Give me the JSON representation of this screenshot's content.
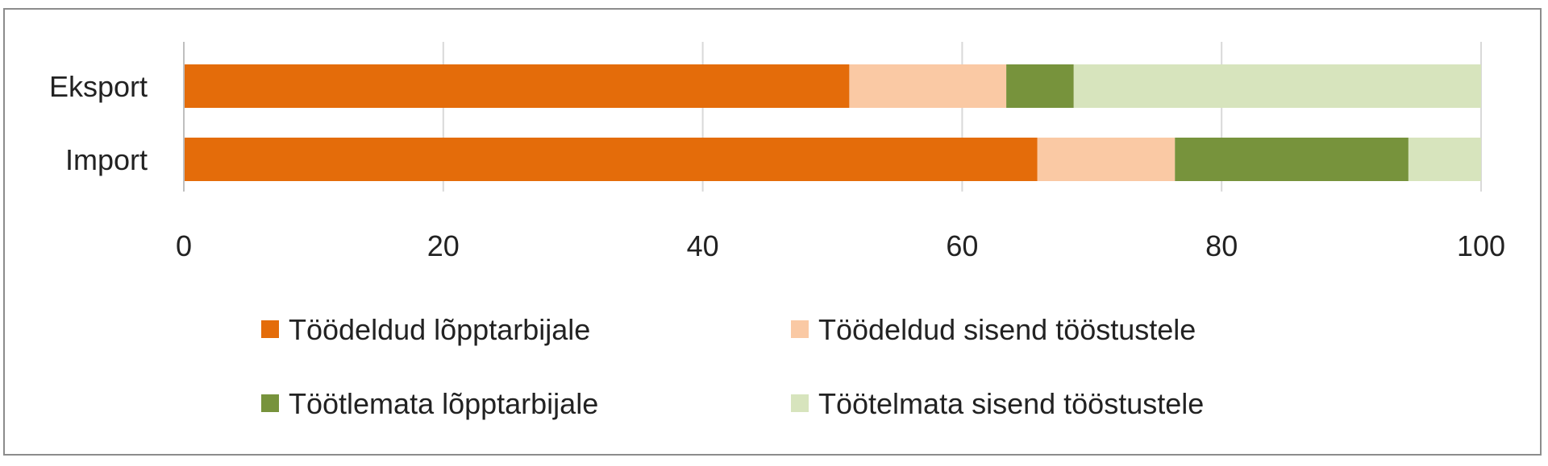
{
  "chart_data": {
    "type": "bar",
    "orientation": "horizontal",
    "stacked": true,
    "categories": [
      "Eksport",
      "Import"
    ],
    "series": [
      {
        "name": "Töödeldud lõpptarbijale",
        "color": "#E46C0A",
        "values": [
          51.3,
          65.8
        ]
      },
      {
        "name": "Töödeldud sisend tööstustele",
        "color": "#FAC9A4",
        "values": [
          12.1,
          10.6
        ]
      },
      {
        "name": "Töötlemata lõpptarbijale",
        "color": "#77933C",
        "values": [
          5.2,
          18.0
        ]
      },
      {
        "name": "Töötelmata sisend tööstustele",
        "color": "#D7E4BD",
        "values": [
          31.4,
          5.6
        ]
      }
    ],
    "xlim": [
      0,
      100
    ],
    "x_ticks": [
      "0",
      "20",
      "40",
      "60",
      "80",
      "100"
    ],
    "title": "",
    "xlabel": "",
    "ylabel": "",
    "grid": "vertical",
    "legend_position": "bottom"
  }
}
